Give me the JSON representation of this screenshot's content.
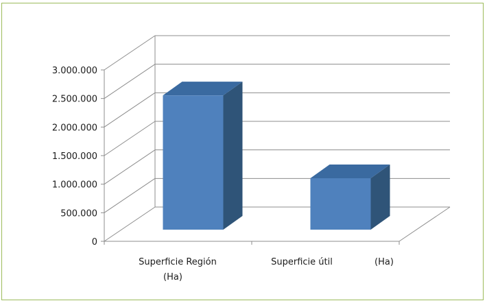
{
  "chart_data": {
    "type": "bar",
    "subtype": "3d-column",
    "title": "",
    "xlabel": "",
    "ylabel": "",
    "categories": [
      "Superficie Región (Ha)",
      "Superficie útil (Ha)"
    ],
    "category_label_lines": [
      [
        "Superficie Región",
        "(Ha)"
      ],
      [
        "Superficie útil",
        "(Ha)"
      ]
    ],
    "values": [
      2350000,
      900000
    ],
    "ylim": [
      0,
      3000000
    ],
    "yticks": [
      0,
      500000,
      1000000,
      1500000,
      2000000,
      2500000,
      3000000
    ],
    "ytick_labels": [
      "0",
      "500.000",
      "1.000.000",
      "1.500.000",
      "2.000.000",
      "2.500.000",
      "3.000.000"
    ],
    "grid": true,
    "legend": "none",
    "colors": {
      "bar_front": "#4f81bd",
      "bar_top": "#3a6aa0",
      "bar_side": "#2f5478",
      "grid": "#8c8c8c",
      "frame": "#9bbb59"
    }
  }
}
